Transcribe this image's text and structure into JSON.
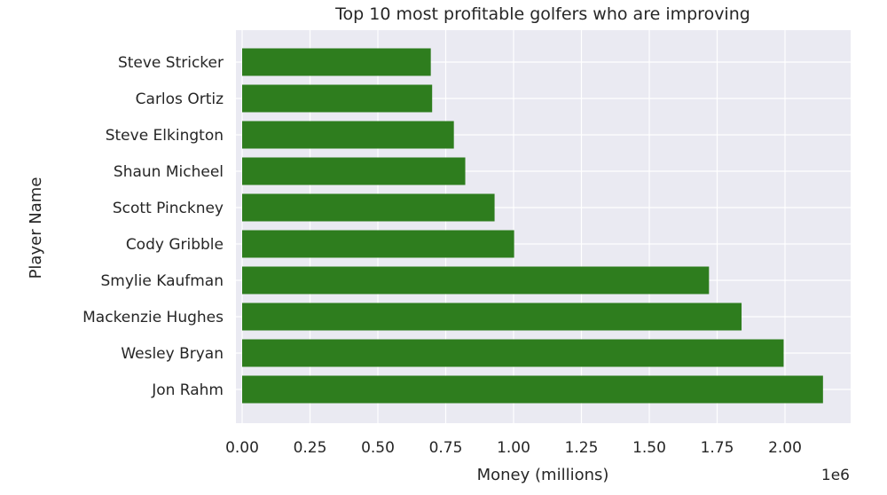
{
  "chart_data": {
    "type": "bar",
    "orientation": "horizontal",
    "title": "Top 10 most profitable golfers who are improving",
    "xlabel": "Money (millions)",
    "ylabel": "Player Name",
    "x_offset_label": "1e6",
    "categories": [
      "Steve Stricker",
      "Carlos Ortiz",
      "Steve Elkington",
      "Shaun Micheel",
      "Scott Pinckney",
      "Cody Gribble",
      "Smylie Kaufman",
      "Mackenzie Hughes",
      "Wesley Bryan",
      "Jon Rahm"
    ],
    "values": [
      695000,
      700000,
      780000,
      822000,
      930000,
      1002000,
      1720000,
      1840000,
      1995000,
      2140000
    ],
    "xlim": [
      0,
      2250000
    ],
    "xticks": [
      0,
      250000,
      500000,
      750000,
      1000000,
      1250000,
      1500000,
      1750000,
      2000000
    ],
    "xtick_labels": [
      "0.00",
      "0.25",
      "0.50",
      "0.75",
      "1.00",
      "1.25",
      "1.50",
      "1.75",
      "2.00"
    ],
    "grid": true,
    "bar_color": "#2e7d1e",
    "background_color": "#eaeaf2",
    "grid_color": "#ffffff"
  }
}
